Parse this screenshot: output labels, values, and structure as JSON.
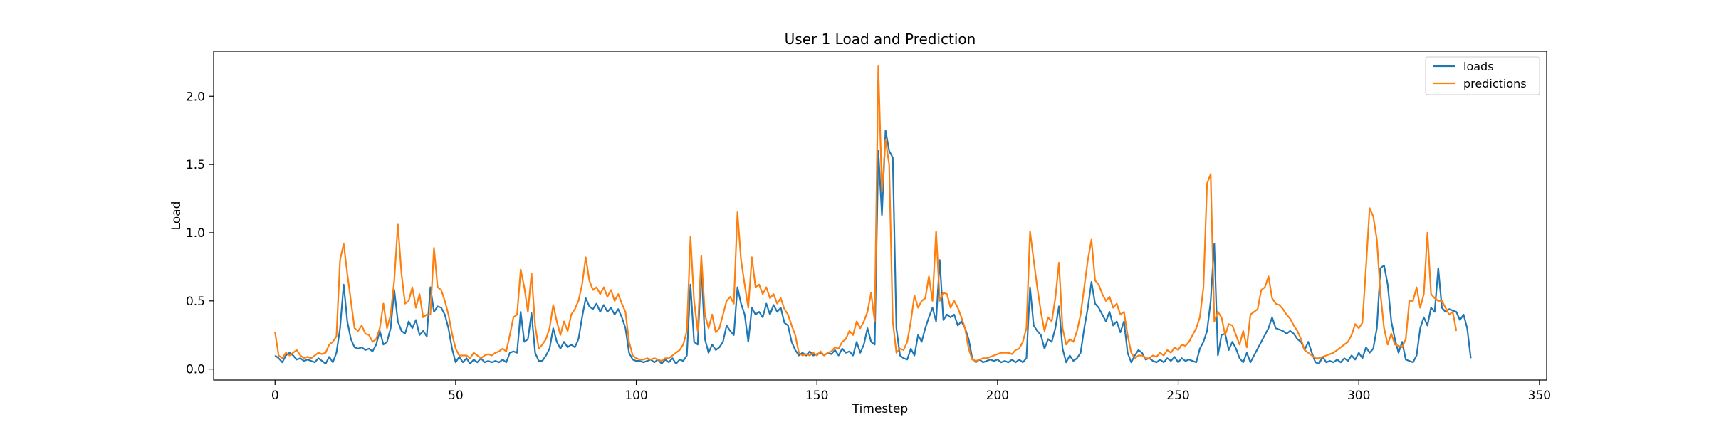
{
  "chart_data": {
    "type": "line",
    "title": "User 1 Load and Prediction",
    "xlabel": "Timestep",
    "ylabel": "Load",
    "xlim": [
      -17,
      352
    ],
    "ylim": [
      -0.08,
      2.33
    ],
    "xticks": [
      0,
      50,
      100,
      150,
      200,
      250,
      300,
      350
    ],
    "yticks": [
      0.0,
      0.5,
      1.0,
      1.5,
      2.0
    ],
    "xtick_labels": [
      "0",
      "50",
      "100",
      "150",
      "200",
      "250",
      "300",
      "350"
    ],
    "ytick_labels": [
      "0.0",
      "0.5",
      "1.0",
      "1.5",
      "2.0"
    ],
    "grid": false,
    "legend_position": "top-right",
    "x_start": 0,
    "x_step": 1,
    "series": [
      {
        "name": "loads",
        "color": "#1f77b4",
        "values": [
          0.1,
          0.08,
          0.05,
          0.1,
          0.12,
          0.1,
          0.07,
          0.08,
          0.06,
          0.07,
          0.06,
          0.05,
          0.08,
          0.06,
          0.04,
          0.09,
          0.05,
          0.12,
          0.3,
          0.62,
          0.35,
          0.22,
          0.16,
          0.15,
          0.16,
          0.14,
          0.15,
          0.13,
          0.18,
          0.28,
          0.18,
          0.2,
          0.3,
          0.58,
          0.35,
          0.28,
          0.26,
          0.35,
          0.3,
          0.36,
          0.25,
          0.28,
          0.24,
          0.6,
          0.42,
          0.46,
          0.45,
          0.4,
          0.3,
          0.15,
          0.05,
          0.09,
          0.05,
          0.08,
          0.04,
          0.07,
          0.05,
          0.08,
          0.05,
          0.06,
          0.05,
          0.06,
          0.05,
          0.07,
          0.05,
          0.12,
          0.13,
          0.12,
          0.42,
          0.2,
          0.22,
          0.41,
          0.12,
          0.06,
          0.06,
          0.1,
          0.15,
          0.3,
          0.2,
          0.15,
          0.2,
          0.16,
          0.18,
          0.16,
          0.22,
          0.38,
          0.52,
          0.46,
          0.44,
          0.48,
          0.42,
          0.47,
          0.42,
          0.45,
          0.4,
          0.44,
          0.38,
          0.3,
          0.12,
          0.07,
          0.06,
          0.06,
          0.05,
          0.06,
          0.07,
          0.05,
          0.07,
          0.04,
          0.07,
          0.05,
          0.08,
          0.04,
          0.07,
          0.06,
          0.1,
          0.62,
          0.2,
          0.18,
          0.76,
          0.22,
          0.12,
          0.18,
          0.14,
          0.16,
          0.2,
          0.32,
          0.28,
          0.25,
          0.6,
          0.48,
          0.4,
          0.2,
          0.45,
          0.4,
          0.42,
          0.38,
          0.48,
          0.4,
          0.47,
          0.42,
          0.45,
          0.34,
          0.32,
          0.2,
          0.14,
          0.1,
          0.12,
          0.1,
          0.13,
          0.1,
          0.11,
          0.12,
          0.1,
          0.12,
          0.11,
          0.14,
          0.1,
          0.15,
          0.12,
          0.13,
          0.1,
          0.2,
          0.12,
          0.18,
          0.3,
          0.2,
          0.18,
          1.6,
          1.13,
          1.75,
          1.6,
          1.55,
          0.3,
          0.1,
          0.08,
          0.07,
          0.15,
          0.1,
          0.25,
          0.2,
          0.3,
          0.38,
          0.45,
          0.35,
          0.8,
          0.36,
          0.4,
          0.38,
          0.4,
          0.32,
          0.35,
          0.3,
          0.22,
          0.08,
          0.05,
          0.07,
          0.05,
          0.06,
          0.07,
          0.06,
          0.07,
          0.05,
          0.06,
          0.05,
          0.07,
          0.05,
          0.07,
          0.05,
          0.08,
          0.6,
          0.32,
          0.28,
          0.25,
          0.15,
          0.22,
          0.2,
          0.3,
          0.46,
          0.15,
          0.05,
          0.1,
          0.06,
          0.08,
          0.12,
          0.3,
          0.45,
          0.64,
          0.48,
          0.45,
          0.4,
          0.35,
          0.42,
          0.32,
          0.35,
          0.27,
          0.35,
          0.12,
          0.05,
          0.1,
          0.14,
          0.12,
          0.07,
          0.08,
          0.06,
          0.05,
          0.07,
          0.05,
          0.08,
          0.06,
          0.09,
          0.05,
          0.08,
          0.06,
          0.07,
          0.06,
          0.05,
          0.15,
          0.2,
          0.28,
          0.5,
          0.92,
          0.1,
          0.25,
          0.26,
          0.14,
          0.2,
          0.15,
          0.08,
          0.05,
          0.12,
          0.05,
          0.1,
          0.15,
          0.2,
          0.25,
          0.3,
          0.38,
          0.3,
          0.29,
          0.28,
          0.26,
          0.28,
          0.26,
          0.22,
          0.2,
          0.14,
          0.2,
          0.12,
          0.05,
          0.04,
          0.09,
          0.05,
          0.06,
          0.05,
          0.07,
          0.05,
          0.08,
          0.06,
          0.1,
          0.07,
          0.12,
          0.08,
          0.16,
          0.12,
          0.15,
          0.3,
          0.74,
          0.76,
          0.62,
          0.35,
          0.22,
          0.12,
          0.2,
          0.07,
          0.06,
          0.05,
          0.1,
          0.3,
          0.38,
          0.32,
          0.45,
          0.42,
          0.74,
          0.45,
          0.42,
          0.44,
          0.43,
          0.42,
          0.36,
          0.4,
          0.3,
          0.08
        ]
      },
      {
        "name": "predictions",
        "color": "#ff7f0e",
        "values": [
          0.27,
          0.1,
          0.08,
          0.12,
          0.1,
          0.12,
          0.14,
          0.1,
          0.08,
          0.09,
          0.08,
          0.1,
          0.12,
          0.11,
          0.12,
          0.18,
          0.2,
          0.24,
          0.8,
          0.92,
          0.7,
          0.5,
          0.3,
          0.28,
          0.32,
          0.26,
          0.25,
          0.2,
          0.22,
          0.3,
          0.48,
          0.3,
          0.4,
          0.65,
          1.06,
          0.7,
          0.48,
          0.5,
          0.6,
          0.45,
          0.55,
          0.38,
          0.4,
          0.4,
          0.89,
          0.6,
          0.58,
          0.5,
          0.4,
          0.26,
          0.15,
          0.1,
          0.1,
          0.1,
          0.08,
          0.12,
          0.1,
          0.08,
          0.1,
          0.11,
          0.1,
          0.12,
          0.13,
          0.15,
          0.13,
          0.25,
          0.38,
          0.4,
          0.73,
          0.6,
          0.42,
          0.7,
          0.32,
          0.15,
          0.18,
          0.22,
          0.3,
          0.47,
          0.35,
          0.25,
          0.35,
          0.28,
          0.4,
          0.44,
          0.5,
          0.62,
          0.82,
          0.65,
          0.58,
          0.6,
          0.55,
          0.6,
          0.53,
          0.58,
          0.5,
          0.55,
          0.48,
          0.42,
          0.2,
          0.1,
          0.08,
          0.07,
          0.07,
          0.08,
          0.07,
          0.08,
          0.07,
          0.06,
          0.08,
          0.08,
          0.1,
          0.12,
          0.14,
          0.18,
          0.28,
          0.97,
          0.5,
          0.28,
          0.83,
          0.4,
          0.3,
          0.4,
          0.27,
          0.3,
          0.4,
          0.5,
          0.53,
          0.48,
          1.15,
          0.8,
          0.62,
          0.45,
          0.82,
          0.6,
          0.62,
          0.55,
          0.6,
          0.52,
          0.55,
          0.48,
          0.52,
          0.44,
          0.4,
          0.32,
          0.25,
          0.12,
          0.1,
          0.11,
          0.1,
          0.12,
          0.1,
          0.13,
          0.1,
          0.12,
          0.13,
          0.16,
          0.15,
          0.2,
          0.22,
          0.28,
          0.25,
          0.35,
          0.3,
          0.35,
          0.42,
          0.56,
          0.35,
          2.22,
          1.3,
          1.68,
          1.5,
          0.35,
          0.12,
          0.15,
          0.14,
          0.2,
          0.35,
          0.54,
          0.45,
          0.5,
          0.52,
          0.68,
          0.5,
          1.01,
          0.5,
          0.56,
          0.55,
          0.45,
          0.5,
          0.45,
          0.38,
          0.3,
          0.15,
          0.07,
          0.06,
          0.07,
          0.08,
          0.08,
          0.09,
          0.1,
          0.11,
          0.12,
          0.12,
          0.12,
          0.11,
          0.14,
          0.15,
          0.2,
          0.3,
          1.01,
          0.8,
          0.6,
          0.42,
          0.28,
          0.38,
          0.35,
          0.52,
          0.78,
          0.3,
          0.18,
          0.22,
          0.2,
          0.28,
          0.4,
          0.6,
          0.8,
          0.95,
          0.65,
          0.62,
          0.55,
          0.5,
          0.53,
          0.45,
          0.48,
          0.4,
          0.42,
          0.25,
          0.12,
          0.08,
          0.1,
          0.1,
          0.08,
          0.08,
          0.1,
          0.09,
          0.12,
          0.1,
          0.14,
          0.12,
          0.16,
          0.14,
          0.18,
          0.17,
          0.2,
          0.25,
          0.3,
          0.38,
          0.6,
          1.36,
          1.43,
          0.35,
          0.42,
          0.38,
          0.25,
          0.33,
          0.32,
          0.25,
          0.18,
          0.28,
          0.16,
          0.4,
          0.42,
          0.44,
          0.58,
          0.6,
          0.68,
          0.52,
          0.48,
          0.47,
          0.44,
          0.4,
          0.37,
          0.32,
          0.28,
          0.22,
          0.14,
          0.12,
          0.1,
          0.08,
          0.08,
          0.09,
          0.1,
          0.11,
          0.12,
          0.14,
          0.16,
          0.18,
          0.2,
          0.25,
          0.33,
          0.3,
          0.34,
          0.75,
          1.18,
          1.12,
          0.95,
          0.55,
          0.3,
          0.18,
          0.26,
          0.18,
          0.17,
          0.16,
          0.22,
          0.5,
          0.5,
          0.6,
          0.45,
          0.55,
          1.0,
          0.55,
          0.52,
          0.5,
          0.5,
          0.45,
          0.4,
          0.42,
          0.28
        ]
      }
    ]
  }
}
